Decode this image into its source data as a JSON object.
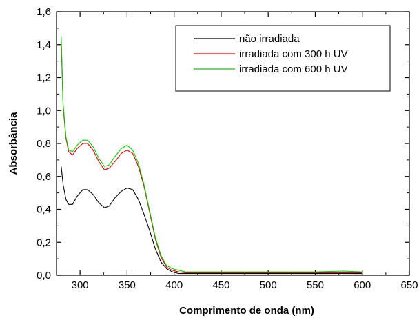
{
  "chart_data": {
    "type": "line",
    "xlabel": "Comprimento de onda (nm)",
    "ylabel": "Absorbância",
    "xlim": [
      275,
      650
    ],
    "ylim": [
      0.0,
      1.6
    ],
    "xticks": [
      300,
      350,
      400,
      450,
      500,
      550,
      600,
      650
    ],
    "xtick_labels": [
      "300",
      "350",
      "400",
      "450",
      "500",
      "550",
      "600",
      "650"
    ],
    "yticks": [
      0.0,
      0.2,
      0.4,
      0.6,
      0.8,
      1.0,
      1.2,
      1.4,
      1.6
    ],
    "ytick_labels": [
      "0,0",
      "0,2",
      "0,4",
      "0,6",
      "0,8",
      "1,0",
      "1,2",
      "1,4",
      "1,6"
    ],
    "grid": false,
    "legend_position": "top-right",
    "series": [
      {
        "name": "não irradiada",
        "color": "#000000",
        "x": [
          280,
          282,
          285,
          288,
          292,
          297,
          303,
          308,
          314,
          320,
          326,
          331,
          337,
          344,
          350,
          356,
          362,
          368,
          374,
          380,
          386,
          392,
          398,
          405,
          412,
          420,
          450,
          500,
          550,
          580,
          600
        ],
        "y": [
          0.66,
          0.55,
          0.46,
          0.43,
          0.43,
          0.48,
          0.52,
          0.52,
          0.49,
          0.44,
          0.41,
          0.42,
          0.47,
          0.51,
          0.53,
          0.52,
          0.46,
          0.37,
          0.27,
          0.16,
          0.08,
          0.04,
          0.02,
          0.01,
          0.01,
          0.01,
          0.01,
          0.01,
          0.01,
          0.01,
          0.01
        ]
      },
      {
        "name": "irradiada com 300 h UV",
        "color": "#e00000",
        "x": [
          280,
          282,
          285,
          288,
          292,
          297,
          303,
          308,
          314,
          320,
          326,
          331,
          337,
          344,
          350,
          356,
          362,
          368,
          374,
          380,
          386,
          392,
          398,
          405,
          412,
          420,
          450,
          500,
          550,
          580,
          600
        ],
        "y": [
          1.42,
          1.02,
          0.83,
          0.75,
          0.73,
          0.77,
          0.8,
          0.8,
          0.76,
          0.69,
          0.64,
          0.65,
          0.69,
          0.74,
          0.76,
          0.74,
          0.66,
          0.54,
          0.38,
          0.22,
          0.11,
          0.05,
          0.03,
          0.02,
          0.015,
          0.015,
          0.015,
          0.015,
          0.015,
          0.015,
          0.015
        ]
      },
      {
        "name": "irradiada com 600 h UV",
        "color": "#00cc00",
        "x": [
          280,
          282,
          285,
          288,
          292,
          297,
          303,
          308,
          314,
          320,
          326,
          331,
          337,
          344,
          350,
          356,
          362,
          368,
          374,
          380,
          386,
          392,
          398,
          405,
          412,
          420,
          450,
          500,
          550,
          580,
          600
        ],
        "y": [
          1.45,
          1.04,
          0.84,
          0.76,
          0.75,
          0.79,
          0.82,
          0.82,
          0.78,
          0.71,
          0.66,
          0.67,
          0.72,
          0.77,
          0.79,
          0.76,
          0.68,
          0.55,
          0.39,
          0.23,
          0.12,
          0.06,
          0.04,
          0.03,
          0.02,
          0.02,
          0.02,
          0.02,
          0.02,
          0.025,
          0.02
        ]
      }
    ]
  }
}
